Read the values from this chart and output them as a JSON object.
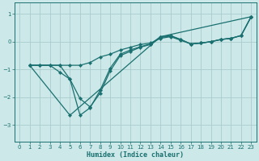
{
  "xlabel": "Humidex (Indice chaleur)",
  "bg_color": "#cce8e8",
  "grid_color": "#aacccc",
  "line_color": "#1a7070",
  "xlim": [
    -0.5,
    23.5
  ],
  "ylim": [
    -3.6,
    1.4
  ],
  "yticks": [
    -3,
    -2,
    -1,
    0,
    1
  ],
  "xticks": [
    0,
    1,
    2,
    3,
    4,
    5,
    6,
    7,
    8,
    9,
    10,
    11,
    12,
    13,
    14,
    15,
    16,
    17,
    18,
    19,
    20,
    21,
    22,
    23
  ],
  "line1_x": [
    1,
    2,
    3,
    4,
    5,
    6,
    7,
    8,
    9,
    10,
    11,
    12,
    13,
    14,
    15,
    16,
    17,
    18,
    19,
    20,
    21,
    22,
    23
  ],
  "line1_y": [
    -0.85,
    -0.85,
    -0.85,
    -0.85,
    -0.85,
    -0.85,
    -0.75,
    -0.55,
    -0.45,
    -0.3,
    -0.2,
    -0.1,
    -0.05,
    0.12,
    0.18,
    0.05,
    -0.08,
    -0.05,
    0.0,
    0.08,
    0.12,
    0.22,
    0.9
  ],
  "line2_x": [
    1,
    2,
    3,
    4,
    5,
    6,
    7,
    8,
    9,
    10,
    11,
    12,
    13,
    14,
    15,
    16,
    17,
    18,
    19,
    20,
    21,
    22,
    23
  ],
  "line2_y": [
    -0.85,
    -0.85,
    -0.85,
    -1.1,
    -1.35,
    -2.05,
    -2.35,
    -1.85,
    -1.05,
    -0.5,
    -0.35,
    -0.2,
    -0.1,
    0.15,
    0.2,
    0.08,
    -0.08,
    -0.05,
    0.0,
    0.08,
    0.12,
    0.22,
    0.9
  ],
  "line3_x": [
    1,
    5,
    14,
    23
  ],
  "line3_y": [
    -0.85,
    -2.65,
    0.18,
    0.9
  ],
  "line4_x": [
    1,
    4,
    5,
    6,
    7,
    8,
    9,
    10,
    11,
    12,
    13,
    14,
    15,
    16,
    17,
    18,
    19,
    20,
    21,
    22,
    23
  ],
  "line4_y": [
    -0.85,
    -0.85,
    -1.35,
    -2.65,
    -2.38,
    -1.75,
    -0.95,
    -0.45,
    -0.3,
    -0.18,
    -0.08,
    0.18,
    0.22,
    0.08,
    -0.08,
    -0.05,
    0.0,
    0.08,
    0.12,
    0.22,
    0.9
  ]
}
